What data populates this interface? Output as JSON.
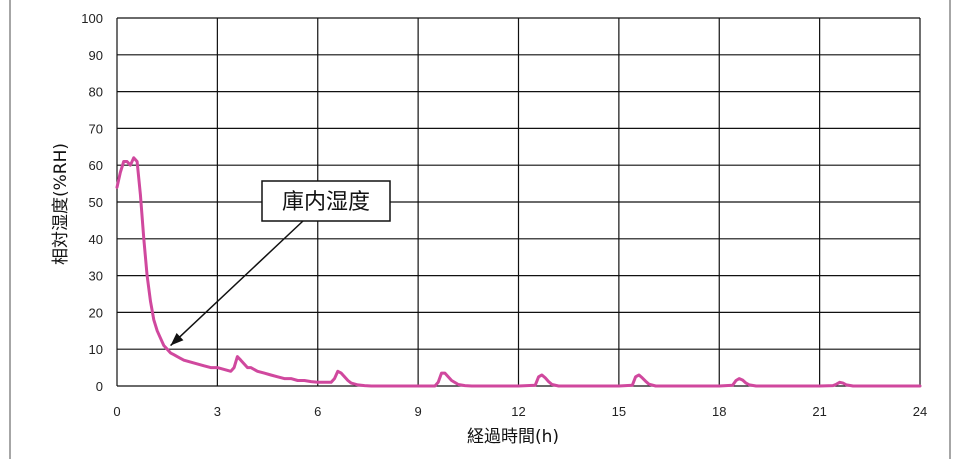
{
  "chart_data": {
    "type": "line",
    "title": "",
    "xlabel": "経過時間(h)",
    "ylabel": "相対湿度(%RH)",
    "xlim": [
      0,
      24
    ],
    "ylim": [
      0,
      100
    ],
    "x_ticks": [
      0,
      3,
      6,
      9,
      12,
      15,
      18,
      21,
      24
    ],
    "y_ticks": [
      0,
      10,
      20,
      30,
      40,
      50,
      60,
      70,
      80,
      90,
      100
    ],
    "grid": true,
    "colors": {
      "series": "#d0489e",
      "grid": "#111111",
      "border": "#888888"
    },
    "series": [
      {
        "name": "",
        "x": [
          0,
          0.1,
          0.2,
          0.3,
          0.4,
          0.5,
          0.6,
          0.7,
          0.8,
          0.9,
          1.0,
          1.1,
          1.2,
          1.3,
          1.4,
          1.5,
          1.6,
          1.7,
          1.8,
          1.9,
          2.0,
          2.2,
          2.4,
          2.6,
          2.8,
          3.0,
          3.2,
          3.4,
          3.5,
          3.6,
          3.7,
          3.8,
          3.9,
          4.0,
          4.2,
          4.4,
          4.6,
          4.8,
          5.0,
          5.2,
          5.4,
          5.6,
          5.8,
          6.0,
          6.2,
          6.4,
          6.5,
          6.6,
          6.7,
          6.8,
          6.9,
          7.0,
          7.2,
          7.4,
          7.6,
          7.8,
          8.0,
          8.5,
          9.0,
          9.5,
          9.6,
          9.7,
          9.8,
          9.9,
          10.0,
          10.2,
          10.4,
          10.6,
          11.0,
          11.5,
          12.0,
          12.5,
          12.6,
          12.7,
          12.8,
          12.9,
          13.0,
          13.2,
          13.4,
          14.0,
          14.5,
          15.0,
          15.4,
          15.5,
          15.6,
          15.7,
          15.8,
          15.9,
          16.1,
          16.5,
          17.0,
          17.5,
          18.0,
          18.4,
          18.5,
          18.6,
          18.7,
          18.8,
          18.9,
          19.1,
          19.5,
          20.0,
          20.5,
          21.0,
          21.4,
          21.5,
          21.6,
          21.7,
          21.8,
          22.0,
          22.5,
          23.0,
          23.5,
          24.0
        ],
        "values": [
          54,
          58,
          61,
          61,
          60,
          62,
          61,
          52,
          40,
          30,
          23,
          18,
          15,
          13,
          11,
          10,
          9,
          8.5,
          8,
          7.5,
          7,
          6.5,
          6,
          5.5,
          5,
          5,
          4.5,
          4,
          5,
          8,
          7,
          6,
          5,
          5,
          4,
          3.5,
          3,
          2.5,
          2,
          2,
          1.5,
          1.5,
          1.2,
          1,
          1,
          1,
          2,
          4,
          3.5,
          2.5,
          1.5,
          0.8,
          0.3,
          0.1,
          0,
          0,
          0,
          0,
          0,
          0,
          1,
          3.5,
          3.5,
          2.5,
          1.5,
          0.4,
          0.1,
          0,
          0,
          0,
          0,
          0.2,
          2.5,
          3,
          2.2,
          1.2,
          0.4,
          0,
          0,
          0,
          0,
          0,
          0.2,
          2.5,
          3,
          2.2,
          1.3,
          0.5,
          0,
          0,
          0,
          0,
          0,
          0.2,
          1.5,
          2,
          1.6,
          0.8,
          0.3,
          0,
          0,
          0,
          0,
          0,
          0.1,
          0.5,
          1,
          0.8,
          0.3,
          0,
          0,
          0,
          0,
          0
        ]
      }
    ],
    "annotation": {
      "text": "庫内湿度",
      "points_to": {
        "x": 1.6,
        "y": 11
      }
    }
  }
}
